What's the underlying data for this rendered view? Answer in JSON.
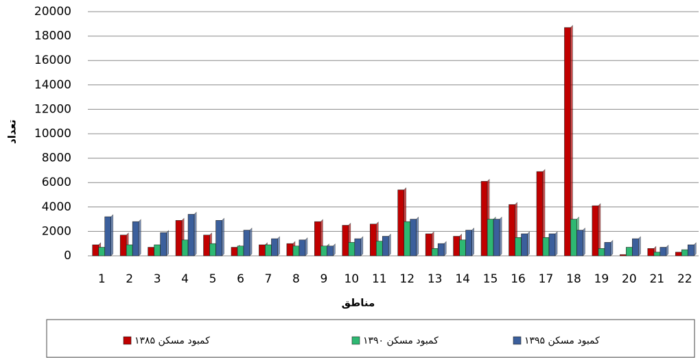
{
  "chart_data": {
    "type": "bar",
    "x_label": "مناطق",
    "y_label": "تعداد",
    "categories": [
      "1",
      "2",
      "3",
      "4",
      "5",
      "6",
      "7",
      "8",
      "9",
      "10",
      "11",
      "12",
      "13",
      "14",
      "15",
      "16",
      "17",
      "18",
      "19",
      "20",
      "21",
      "22"
    ],
    "series": [
      {
        "name": "کمبود مسکن ۱۳۸۵",
        "color": "#c00000",
        "values": [
          900,
          1700,
          700,
          2900,
          1700,
          700,
          900,
          1000,
          2800,
          2500,
          2600,
          5400,
          1800,
          1600,
          6100,
          4200,
          6900,
          18700,
          4100,
          100,
          600,
          300
        ]
      },
      {
        "name": "کمبود  مسکن ۱۳۹۰",
        "color": "#2eb872",
        "values": [
          700,
          900,
          900,
          1300,
          1000,
          800,
          900,
          800,
          800,
          1100,
          1200,
          2800,
          600,
          1300,
          3000,
          1500,
          1500,
          3000,
          600,
          700,
          300,
          500
        ]
      },
      {
        "name": "کمبود مسکن ۱۳۹۵",
        "color": "#3b5f9c",
        "values": [
          3200,
          2800,
          1900,
          3400,
          2900,
          2100,
          1400,
          1300,
          800,
          1400,
          1600,
          3000,
          1000,
          2100,
          3000,
          1800,
          1800,
          2100,
          1100,
          1400,
          700,
          900
        ]
      }
    ],
    "ylim": [
      0,
      20000
    ],
    "yticks": [
      0,
      2000,
      4000,
      6000,
      8000,
      10000,
      12000,
      14000,
      16000,
      18000,
      20000
    ],
    "grid": true,
    "legend": "bottom"
  }
}
